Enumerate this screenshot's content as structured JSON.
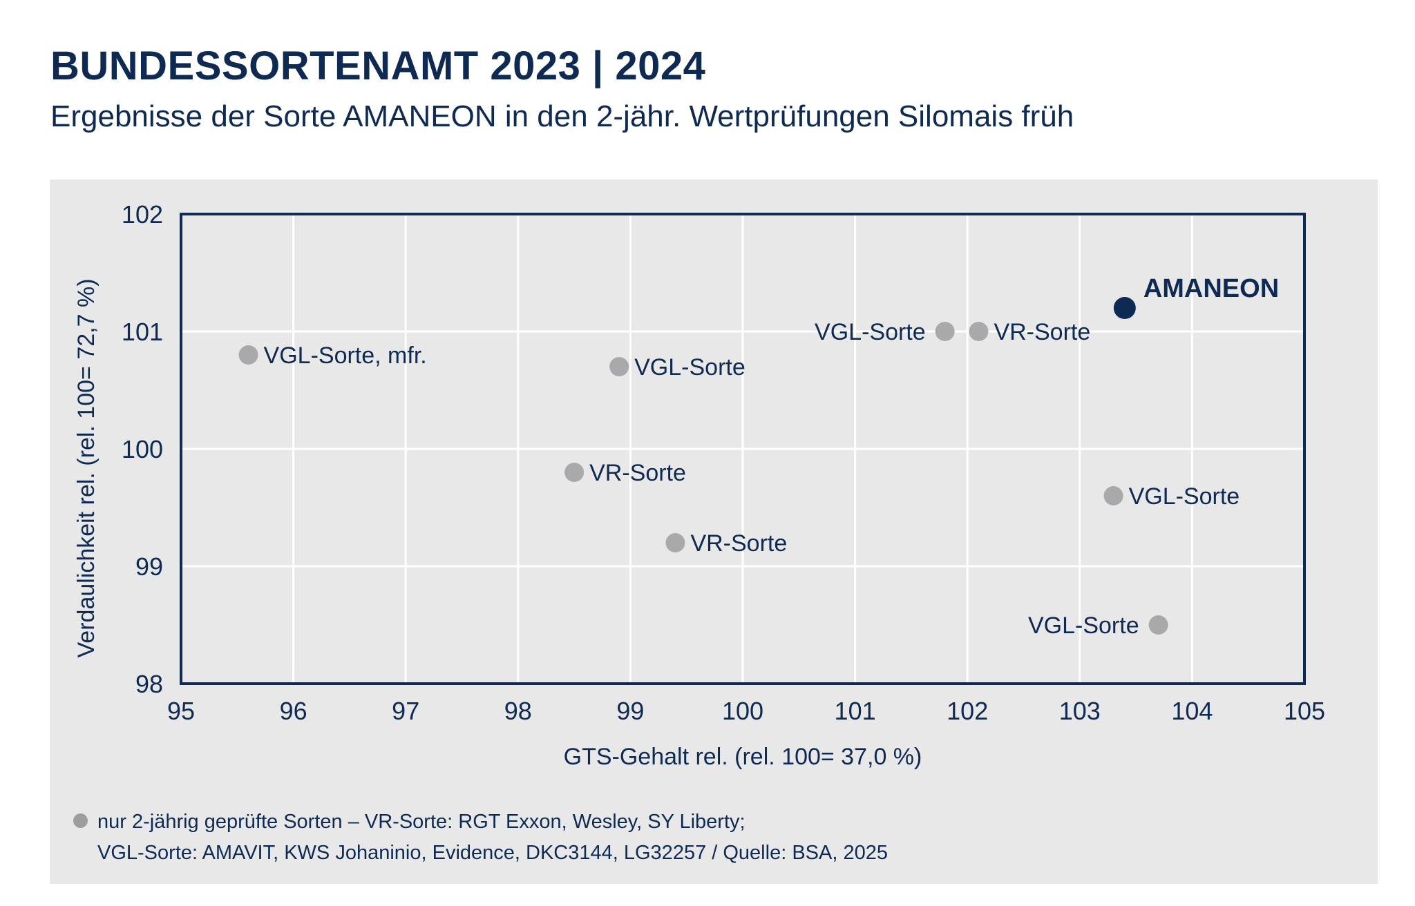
{
  "header": {
    "title": "BUNDESSORTENAMT 2023 | 2024",
    "subtitle": "Ergebnisse der Sorte AMANEON in den 2-jähr. Wertprüfungen Silomais früh"
  },
  "chart_data": {
    "type": "scatter",
    "xlabel": "GTS-Gehalt rel. (rel. 100= 37,0 %)",
    "ylabel": "Verdaulichkeit rel. (rel. 100= 72,7 %)",
    "xlim": [
      95,
      105
    ],
    "ylim": [
      98,
      102
    ],
    "xticks": [
      "95",
      "96",
      "97",
      "98",
      "99",
      "100",
      "101",
      "102",
      "103",
      "104",
      "105"
    ],
    "yticks": [
      "98",
      "99",
      "100",
      "101",
      "102"
    ],
    "grid": true,
    "points": [
      {
        "label": "VGL-Sorte, mfr.",
        "x": 95.6,
        "y": 100.8,
        "group": "comparison",
        "label_side": "right"
      },
      {
        "label": "VGL-Sorte",
        "x": 98.9,
        "y": 100.7,
        "group": "comparison",
        "label_side": "right"
      },
      {
        "label": "VR-Sorte",
        "x": 98.5,
        "y": 99.8,
        "group": "comparison",
        "label_side": "right"
      },
      {
        "label": "VR-Sorte",
        "x": 99.4,
        "y": 99.2,
        "group": "comparison",
        "label_side": "right"
      },
      {
        "label": "VGL-Sorte",
        "x": 101.8,
        "y": 101.0,
        "group": "comparison",
        "label_side": "left"
      },
      {
        "label": "VR-Sorte",
        "x": 102.1,
        "y": 101.0,
        "group": "comparison",
        "label_side": "right"
      },
      {
        "label": "AMANEON",
        "x": 103.4,
        "y": 101.2,
        "group": "highlight",
        "label_side": "right-up"
      },
      {
        "label": "VGL-Sorte",
        "x": 103.3,
        "y": 99.6,
        "group": "comparison",
        "label_side": "right"
      },
      {
        "label": "VGL-Sorte",
        "x": 103.7,
        "y": 98.5,
        "group": "comparison",
        "label_side": "left"
      }
    ],
    "colors": {
      "comparison": "#a9a9ab",
      "highlight": "#0e2a52",
      "axis": "#0e2a52",
      "grid": "#ffffff",
      "panel": "#e8e8e9"
    }
  },
  "footnote": {
    "line1": "nur 2-jährig geprüfte Sorten – VR-Sorte: RGT Exxon, Wesley, SY Liberty;",
    "line2": "VGL-Sorte: AMAVIT, KWS Johaninio, Evidence, DKC3144, LG32257 / Quelle: BSA, 2025"
  }
}
